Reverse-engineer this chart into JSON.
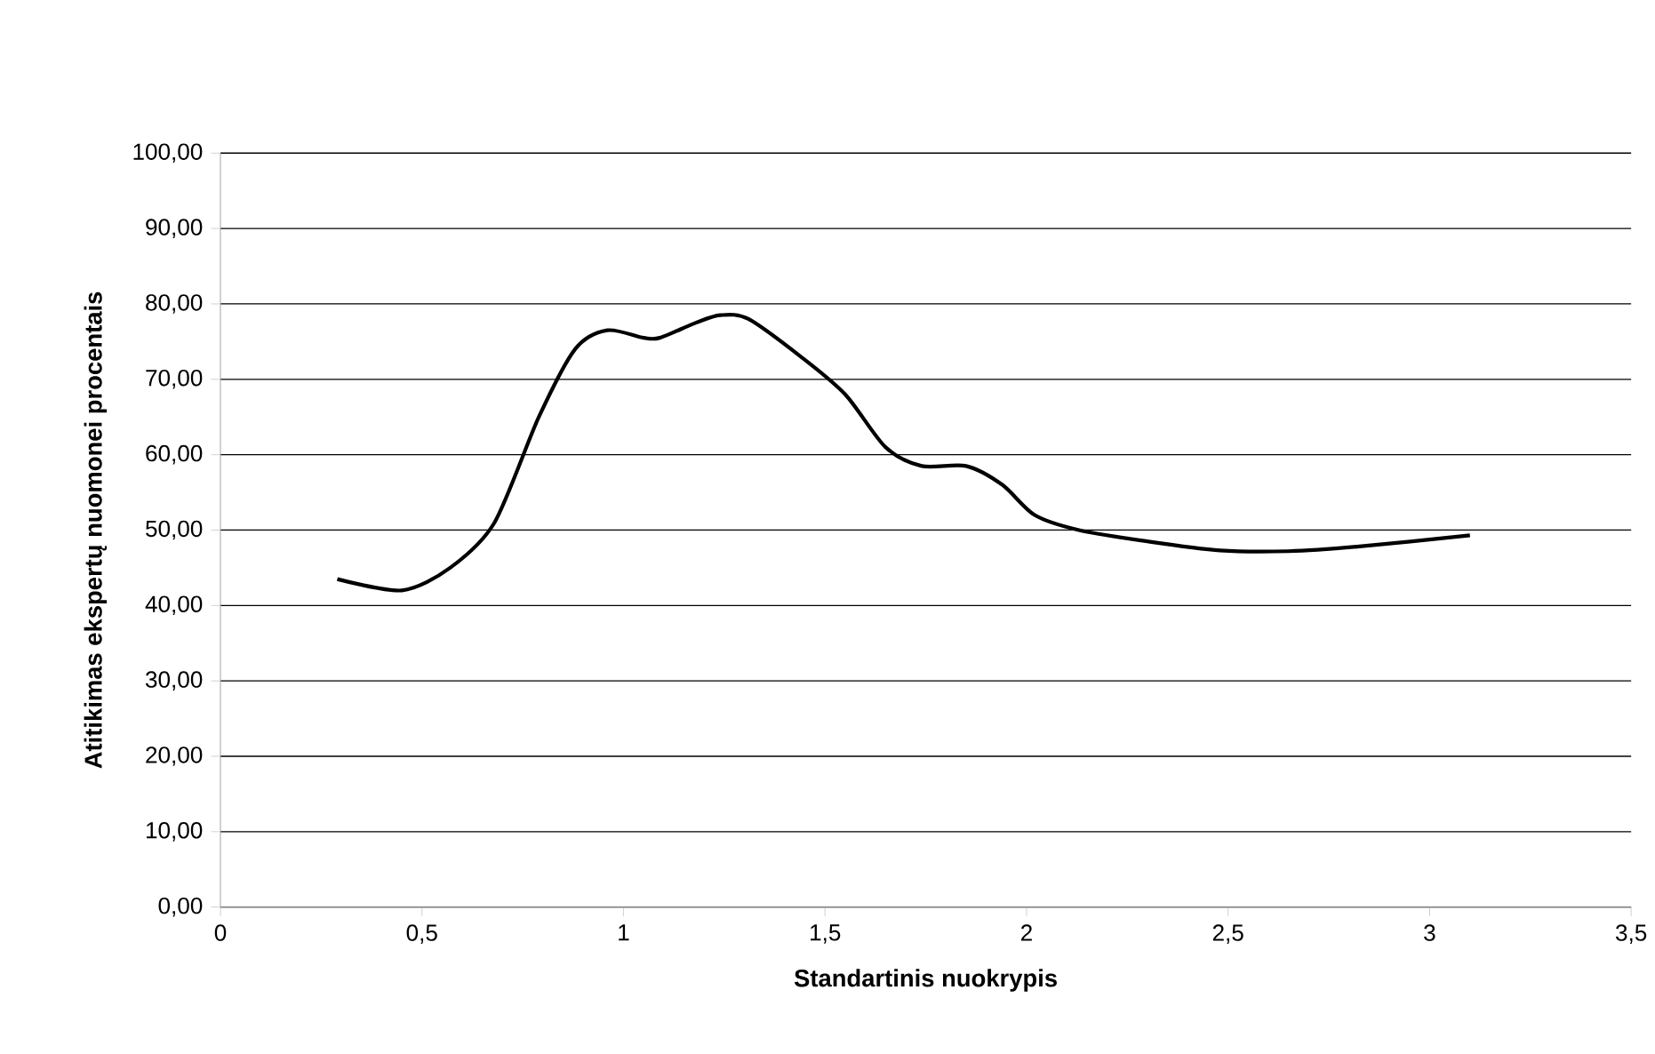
{
  "chart_data": {
    "type": "line",
    "xlabel": "Standartinis nuokrypis",
    "ylabel": "Atitikimas ekspertų nuomonei procentais",
    "x": [
      0.29,
      0.45,
      0.57,
      0.68,
      0.79,
      0.88,
      0.96,
      1.05,
      1.09,
      1.18,
      1.24,
      1.31,
      1.44,
      1.55,
      1.65,
      1.74,
      1.85,
      1.94,
      2.02,
      2.13,
      2.3,
      2.48,
      2.65,
      2.82,
      3.1
    ],
    "series": [
      {
        "color": "#000000",
        "values": [
          43.5,
          42,
          45,
          51,
          65,
          74,
          76.5,
          75.5,
          75.5,
          77.5,
          78.5,
          78,
          73,
          68,
          61,
          58.5,
          58.5,
          56,
          52,
          50,
          48.5,
          47.3,
          47.2,
          47.8,
          49.3
        ]
      }
    ],
    "xlim": [
      0,
      3.5
    ],
    "ylim": [
      0,
      100
    ],
    "xticks": [
      0,
      {
        "value": 0.5,
        "label": "0,5"
      },
      1,
      {
        "value": 1.5,
        "label": "1,5"
      },
      2,
      {
        "value": 2.5,
        "label": "2,5"
      },
      3,
      {
        "value": 3.5,
        "label": "3,5"
      }
    ],
    "yticks": [
      {
        "value": 0,
        "label": "0,00"
      },
      {
        "value": 10,
        "label": "10,00"
      },
      {
        "value": 20,
        "label": "20,00"
      },
      {
        "value": 30,
        "label": "30,00"
      },
      {
        "value": 40,
        "label": "40,00"
      },
      {
        "value": 50,
        "label": "50,00"
      },
      {
        "value": 60,
        "label": "60,00"
      },
      {
        "value": 70,
        "label": "70,00"
      },
      {
        "value": 80,
        "label": "80,00"
      },
      {
        "value": 90,
        "label": "90,00"
      },
      {
        "value": 100,
        "label": "100,00"
      }
    ],
    "grid": "y",
    "marker": "none",
    "line_style": "solid"
  }
}
